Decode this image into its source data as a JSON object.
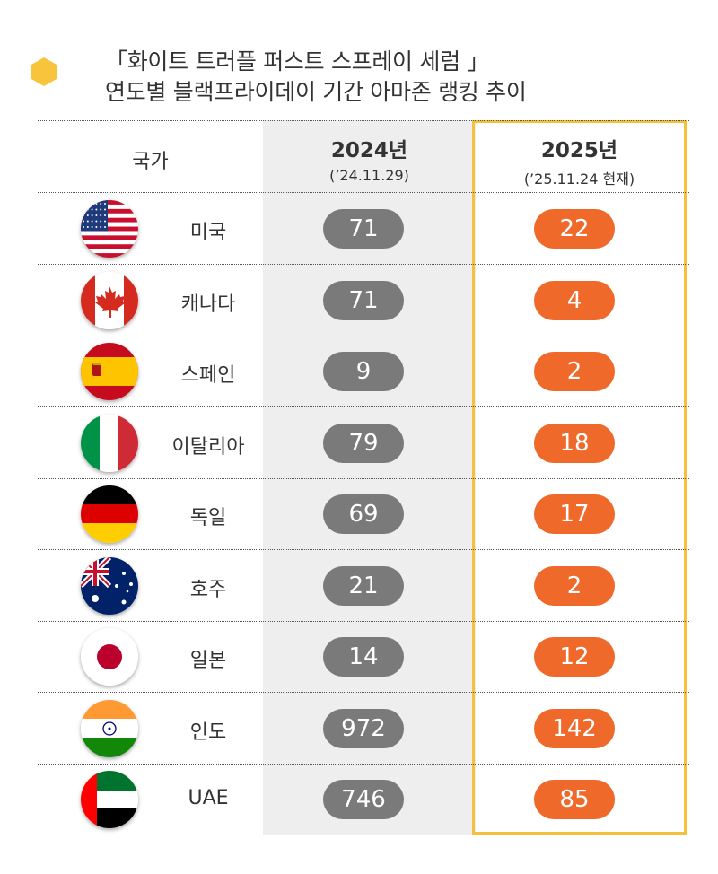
{
  "title": {
    "line1": "「화이트 트러플 퍼스트 스프레이 세럼 」",
    "line2": "연도별 블랙프라이데이 기간 아마존 랭킹 추이"
  },
  "header": {
    "country": "국가",
    "year_2024": "2024년",
    "date_2024": "(’24.11.29)",
    "year_2025": "2025년",
    "date_2025": "(’25.11.24 현재)"
  },
  "colors": {
    "accent_yellow": "#f5c13b",
    "pill_2024": "#7a7a7a",
    "pill_2025": "#ef6a2a",
    "column_2024_bg": "#eeeeee"
  },
  "chart_data": {
    "type": "table",
    "columns": [
      "국가",
      "2024년",
      "2025년"
    ],
    "categories": [
      "미국",
      "캐나다",
      "스페인",
      "이탈리아",
      "독일",
      "호주",
      "일본",
      "인도",
      "UAE"
    ],
    "flags": [
      "us-flag-icon",
      "canada-flag-icon",
      "spain-flag-icon",
      "italy-flag-icon",
      "germany-flag-icon",
      "australia-flag-icon",
      "japan-flag-icon",
      "india-flag-icon",
      "uae-flag-icon"
    ],
    "series": [
      {
        "name": "2024년",
        "values": [
          71,
          71,
          9,
          79,
          69,
          21,
          14,
          972,
          746
        ]
      },
      {
        "name": "2025년",
        "values": [
          22,
          4,
          2,
          18,
          17,
          2,
          12,
          142,
          85
        ]
      }
    ]
  }
}
